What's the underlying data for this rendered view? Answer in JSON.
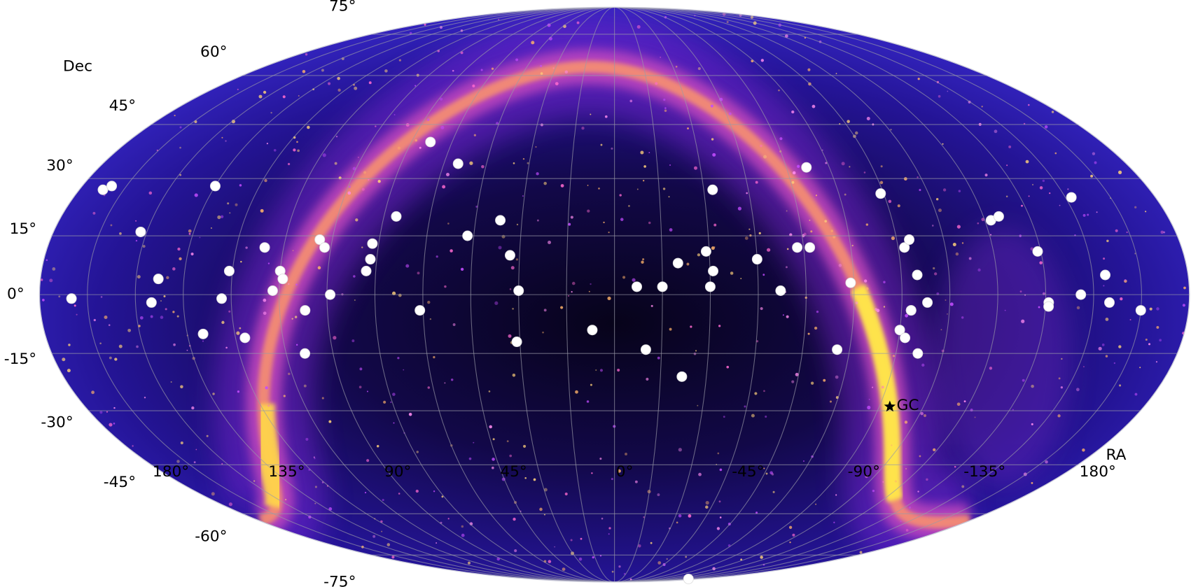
{
  "chart_data": {
    "type": "scatter",
    "projection": "mollweide",
    "x_label": "RA",
    "y_label": "Dec",
    "color": "#ffffff",
    "grid": true,
    "xlim": [
      180,
      -180
    ],
    "ylim": [
      -90,
      90
    ],
    "xticks": [
      {
        "value": 180,
        "label": "180°"
      },
      {
        "value": 135,
        "label": "135°"
      },
      {
        "value": 90,
        "label": "90°"
      },
      {
        "value": 45,
        "label": "45°"
      },
      {
        "value": 0,
        "label": "0°"
      },
      {
        "value": -45,
        "label": "-45°"
      },
      {
        "value": -90,
        "label": "-90°"
      },
      {
        "value": -135,
        "label": "-135°"
      },
      {
        "value": -180,
        "label": "180°"
      }
    ],
    "xminorticks": [
      165,
      150,
      120,
      105,
      75,
      60,
      30,
      15,
      -15,
      -30,
      -60,
      -75,
      -105,
      -120,
      -150,
      -165
    ],
    "yticks": [
      {
        "value": -75,
        "label": "-75°"
      },
      {
        "value": -60,
        "label": "-60°"
      },
      {
        "value": -45,
        "label": "-45°"
      },
      {
        "value": -30,
        "label": "-30°"
      },
      {
        "value": -15,
        "label": "-15°"
      },
      {
        "value": 0,
        "label": "0°"
      },
      {
        "value": 15,
        "label": "15°"
      },
      {
        "value": 30,
        "label": "30°"
      },
      {
        "value": 45,
        "label": "45°"
      },
      {
        "value": 60,
        "label": "60°"
      },
      {
        "value": 75,
        "label": "75°"
      }
    ],
    "x": [
      170,
      172,
      170,
      152,
      143,
      145,
      130,
      135,
      123,
      121,
      117,
      111,
      105,
      104,
      107,
      97,
      99,
      94,
      92,
      89,
      78,
      77,
      77,
      71,
      61,
      68,
      55,
      47,
      37,
      33,
      30,
      31,
      7,
      -7,
      -10,
      -15,
      -20,
      -22,
      -29,
      -33,
      -31,
      -30,
      -45,
      -52,
      -58,
      -62,
      -67,
      -71,
      -74,
      -89,
      -90,
      -92,
      -92,
      -94,
      -93,
      -93,
      -95,
      -97,
      -98,
      -122,
      -125,
      -134,
      -136,
      -136,
      -152,
      -146,
      -154,
      -155,
      -165,
      -157
    ],
    "values": [
      -1,
      27,
      28,
      16,
      4,
      -2,
      -10,
      28,
      -1,
      6,
      -11,
      12,
      6,
      4,
      1,
      -4,
      -15,
      14,
      12,
      0,
      6,
      9,
      13,
      20,
      -4,
      40,
      34,
      15,
      19,
      10,
      1,
      -12,
      -9,
      2,
      -14,
      2,
      8,
      -21,
      11,
      27,
      6,
      2,
      9,
      1,
      12,
      12,
      33,
      -14,
      3,
      26,
      -9,
      -11,
      12,
      14,
      -4,
      -4,
      5,
      -15,
      -2,
      19,
      20,
      11,
      -2,
      -3,
      25,
      0,
      5,
      -2,
      -4,
      -87
    ],
    "annotations": [
      {
        "text": "GC",
        "x": -93.6,
        "y": -28.9
      }
    ]
  }
}
